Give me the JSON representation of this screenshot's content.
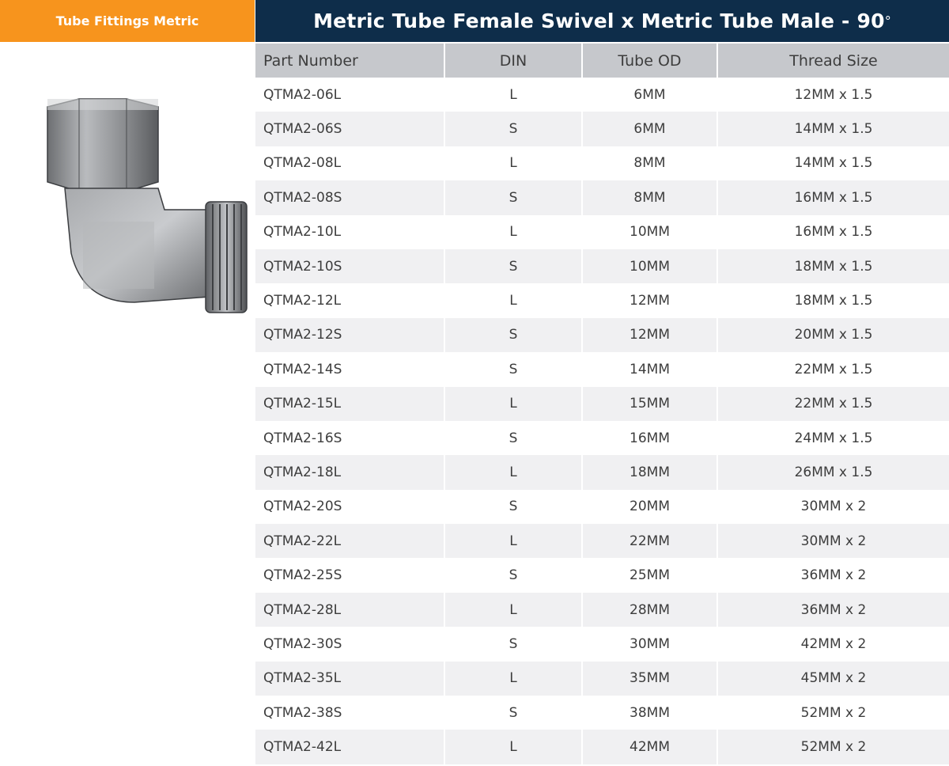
{
  "category_tab": "Tube Fittings Metric",
  "title": "Metric Tube Female Swivel x Metric Tube Male - 90",
  "title_degree": "°",
  "columns": [
    "Part Number",
    "DIN",
    "Tube OD",
    "Thread Size"
  ],
  "rows": [
    [
      "QTMA2-06L",
      "L",
      "6MM",
      "12MM x 1.5"
    ],
    [
      "QTMA2-06S",
      "S",
      "6MM",
      "14MM x 1.5"
    ],
    [
      "QTMA2-08L",
      "L",
      "8MM",
      "14MM x 1.5"
    ],
    [
      "QTMA2-08S",
      "S",
      "8MM",
      "16MM x 1.5"
    ],
    [
      "QTMA2-10L",
      "L",
      "10MM",
      "16MM x 1.5"
    ],
    [
      "QTMA2-10S",
      "S",
      "10MM",
      "18MM x 1.5"
    ],
    [
      "QTMA2-12L",
      "L",
      "12MM",
      "18MM x 1.5"
    ],
    [
      "QTMA2-12S",
      "S",
      "12MM",
      "20MM x 1.5"
    ],
    [
      "QTMA2-14S",
      "S",
      "14MM",
      "22MM x 1.5"
    ],
    [
      "QTMA2-15L",
      "L",
      "15MM",
      "22MM x 1.5"
    ],
    [
      "QTMA2-16S",
      "S",
      "16MM",
      "24MM x 1.5"
    ],
    [
      "QTMA2-18L",
      "L",
      "18MM",
      "26MM x 1.5"
    ],
    [
      "QTMA2-20S",
      "S",
      "20MM",
      "30MM x 2"
    ],
    [
      "QTMA2-22L",
      "L",
      "22MM",
      "30MM x 2"
    ],
    [
      "QTMA2-25S",
      "S",
      "25MM",
      "36MM x 2"
    ],
    [
      "QTMA2-28L",
      "L",
      "28MM",
      "36MM x 2"
    ],
    [
      "QTMA2-30S",
      "S",
      "30MM",
      "42MM x 2"
    ],
    [
      "QTMA2-35L",
      "L",
      "35MM",
      "45MM x 2"
    ],
    [
      "QTMA2-38S",
      "S",
      "38MM",
      "52MM x 2"
    ],
    [
      "QTMA2-42L",
      "L",
      "42MM",
      "52MM x 2"
    ]
  ],
  "colors": {
    "accent_orange": "#f7941d",
    "title_navy": "#0e2d4a",
    "header_gray": "#c6c8cc",
    "row_stripe": "#f0f0f2"
  }
}
